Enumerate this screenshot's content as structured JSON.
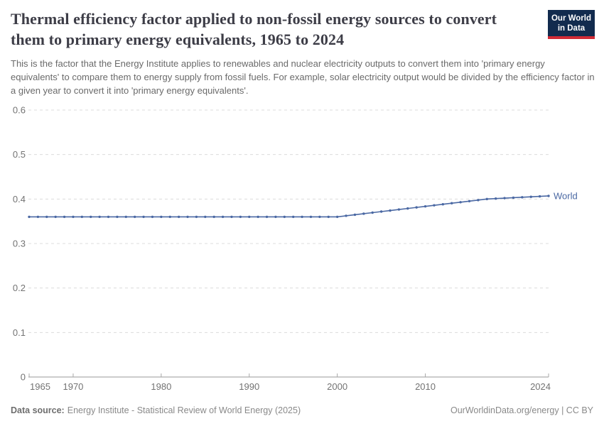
{
  "header": {
    "title": "Thermal efficiency factor applied to non-fossil energy sources to convert them to primary energy equivalents, 1965 to 2024",
    "subtitle": "This is the factor that the Energy Institute applies to renewables and nuclear electricity outputs to convert them into 'primary energy equivalents' to compare them to energy supply from fossil fuels. For example, solar electricity output would be divided by the efficiency factor in a given year to convert it into 'primary energy equivalents'.",
    "logo": {
      "line1": "Our World",
      "line2": "in Data",
      "bg_color": "#122B4E",
      "stripe_color": "#D12B36"
    }
  },
  "chart_data": {
    "type": "line",
    "title": "Thermal efficiency factor applied to non-fossil energy sources to convert them to primary energy equivalents, 1965 to 2024",
    "xlabel": "",
    "ylabel": "",
    "xlim": [
      1965,
      2024
    ],
    "ylim": [
      0,
      0.6
    ],
    "x_ticks": [
      1965,
      1970,
      1980,
      1990,
      2000,
      2010,
      2024
    ],
    "y_ticks": [
      0,
      0.1,
      0.2,
      0.3,
      0.4,
      0.5,
      0.6
    ],
    "grid": "horizontal-dashed",
    "legend_position": "end-of-line-label",
    "series": [
      {
        "name": "World",
        "color": "#4a68a3",
        "x": [
          1965,
          1966,
          1967,
          1968,
          1969,
          1970,
          1971,
          1972,
          1973,
          1974,
          1975,
          1976,
          1977,
          1978,
          1979,
          1980,
          1981,
          1982,
          1983,
          1984,
          1985,
          1986,
          1987,
          1988,
          1989,
          1990,
          1991,
          1992,
          1993,
          1994,
          1995,
          1996,
          1997,
          1998,
          1999,
          2000,
          2001,
          2002,
          2003,
          2004,
          2005,
          2006,
          2007,
          2008,
          2009,
          2010,
          2011,
          2012,
          2013,
          2014,
          2015,
          2016,
          2017,
          2018,
          2019,
          2020,
          2021,
          2022,
          2023,
          2024
        ],
        "values": [
          0.36,
          0.36,
          0.36,
          0.36,
          0.36,
          0.36,
          0.36,
          0.36,
          0.36,
          0.36,
          0.36,
          0.36,
          0.36,
          0.36,
          0.36,
          0.36,
          0.36,
          0.36,
          0.36,
          0.36,
          0.36,
          0.36,
          0.36,
          0.36,
          0.36,
          0.36,
          0.36,
          0.36,
          0.36,
          0.36,
          0.36,
          0.36,
          0.36,
          0.36,
          0.36,
          0.36,
          0.3624,
          0.3647,
          0.3671,
          0.3694,
          0.3718,
          0.3741,
          0.3765,
          0.3788,
          0.3812,
          0.3835,
          0.3859,
          0.3882,
          0.3906,
          0.3929,
          0.3953,
          0.3976,
          0.4,
          0.401,
          0.402,
          0.403,
          0.404,
          0.405,
          0.406,
          0.407
        ]
      }
    ]
  },
  "footer": {
    "datasource_label": "Data source:",
    "datasource_text": "Energy Institute - Statistical Review of World Energy (2025)",
    "credit": "OurWorldinData.org/energy | CC BY"
  }
}
